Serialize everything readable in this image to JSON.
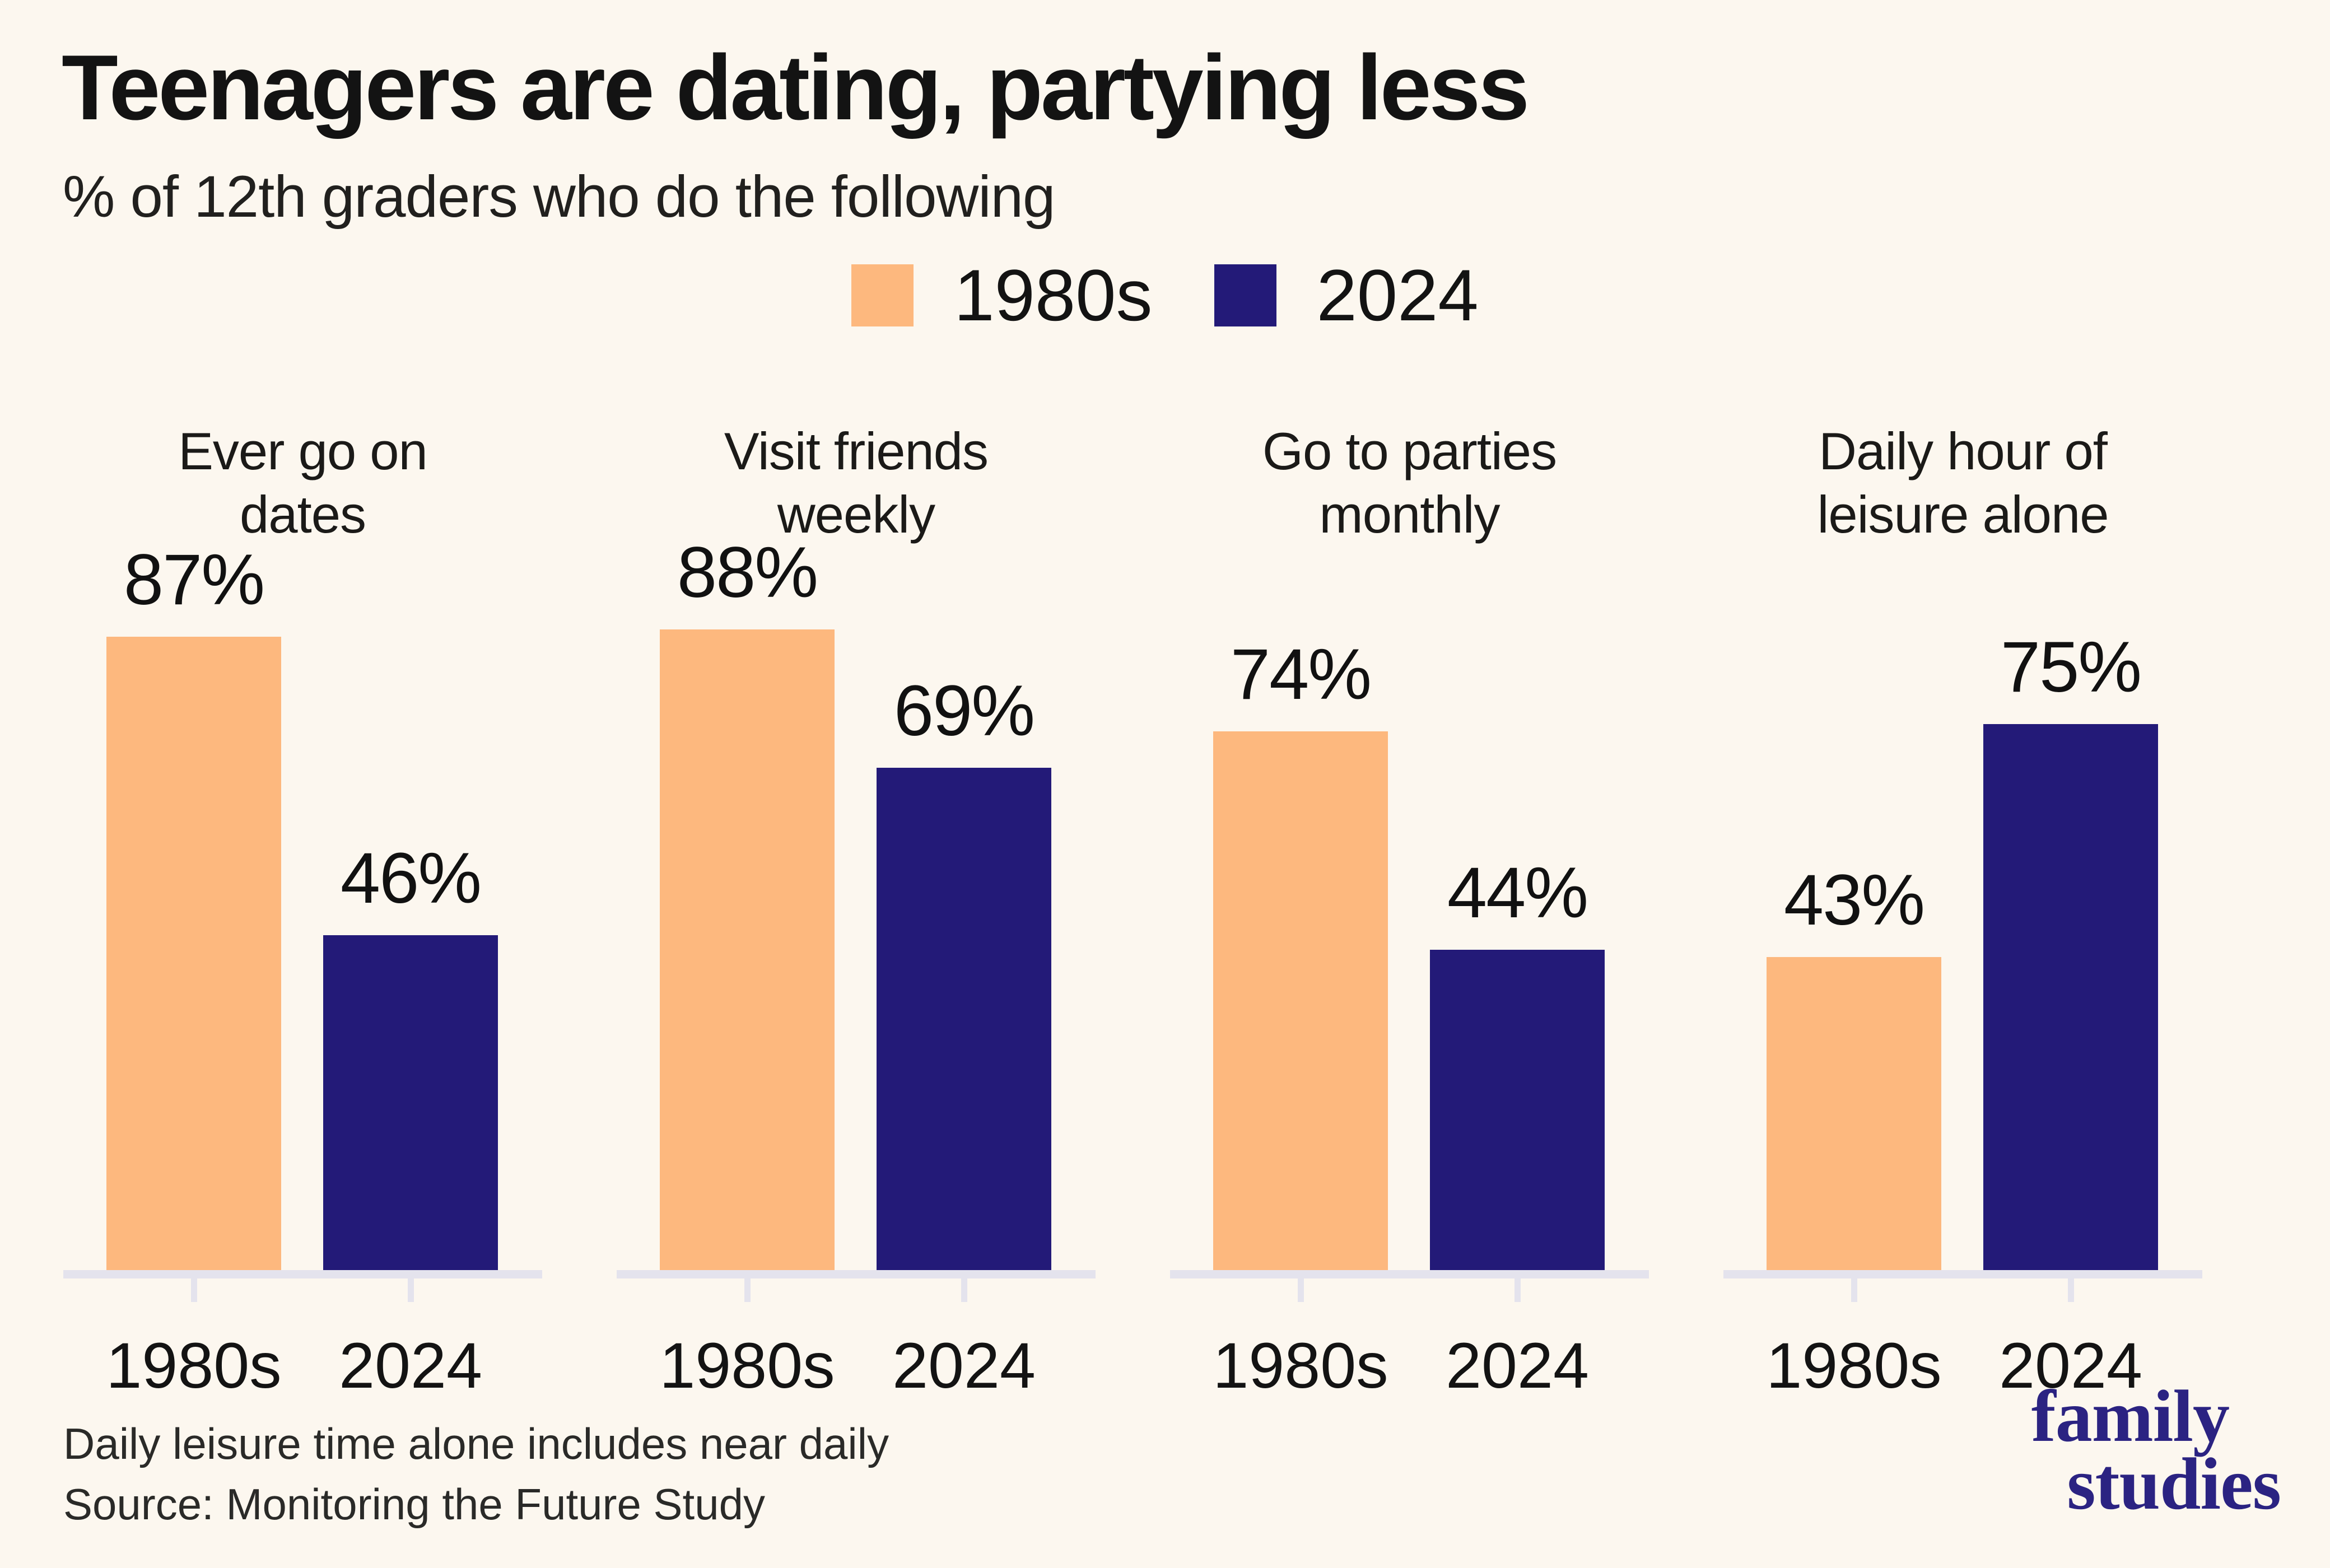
{
  "page": {
    "background": "#FCF7EF"
  },
  "header": {
    "title": "Teenagers are dating, partying less",
    "subtitle": "% of 12th graders who do the following"
  },
  "legend": {
    "items": [
      {
        "label": "1980s",
        "color": "#FDB87E"
      },
      {
        "label": "2024",
        "color": "#231A78"
      }
    ]
  },
  "chart_data": {
    "type": "bar",
    "title": "Teenagers are dating, partying less",
    "subtitle": "% of 12th graders who do the following",
    "unit": "%",
    "ylim": [
      0,
      100
    ],
    "grid": false,
    "legend_position": "top-center",
    "series_labels": [
      "1980s",
      "2024"
    ],
    "series_colors": [
      "#FDB87E",
      "#231A78"
    ],
    "x_tick_labels": [
      "1980s",
      "2024"
    ],
    "panels": [
      {
        "title": "Ever go on dates",
        "title_lines": [
          "Ever go on",
          "dates"
        ],
        "values": [
          87,
          46
        ],
        "labels": [
          "87%",
          "46%"
        ]
      },
      {
        "title": "Visit friends weekly",
        "title_lines": [
          "Visit friends",
          "weekly"
        ],
        "values": [
          88,
          69
        ],
        "labels": [
          "88%",
          "69%"
        ]
      },
      {
        "title": "Go to parties monthly",
        "title_lines": [
          "Go to parties",
          "monthly"
        ],
        "values": [
          74,
          44
        ],
        "labels": [
          "74%",
          "44%"
        ]
      },
      {
        "title": "Daily hour of leisure alone",
        "title_lines": [
          "Daily hour of",
          "leisure alone"
        ],
        "values": [
          43,
          75
        ],
        "labels": [
          "43%",
          "75%"
        ]
      }
    ]
  },
  "footer": {
    "note": "Daily leisure time alone includes near daily",
    "source": "Source: Monitoring the Future Study",
    "logo_lines": [
      "family",
      "studies"
    ],
    "logo_color": "#2B2382"
  },
  "colors": {
    "background": "#FCF7EF",
    "axis": "#E4E3ED",
    "bar_1980s": "#FDB87E",
    "bar_2024": "#231A78",
    "text": "#161513"
  }
}
